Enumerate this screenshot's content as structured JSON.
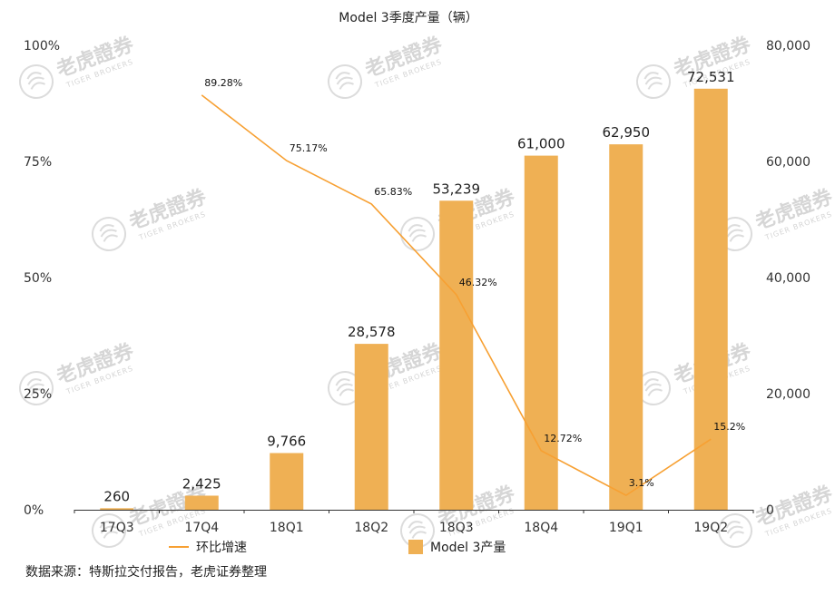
{
  "watermark": {
    "brand": "老虎證券",
    "sub": "TIGER BROKERS"
  },
  "source_note": "数据来源：特斯拉交付报告，老虎证券整理",
  "colors": {
    "bar": "#EFB054",
    "line": "#F7A032",
    "axis": "#333333"
  },
  "chart_data": {
    "type": "bar",
    "title": "Model 3季度产量（辆）",
    "categories": [
      "17Q3",
      "17Q4",
      "18Q1",
      "18Q2",
      "18Q3",
      "18Q4",
      "19Q1",
      "19Q2"
    ],
    "series": [
      {
        "name": "Model 3产量",
        "type": "bar",
        "axis": "right",
        "values": [
          260,
          2425,
          9766,
          28578,
          53239,
          61000,
          62950,
          72531
        ],
        "labels": [
          "260",
          "2,425",
          "9,766",
          "28,578",
          "53,239",
          "61,000",
          "62,950",
          "72,531"
        ]
      },
      {
        "name": "环比增速",
        "type": "line",
        "axis": "left",
        "values": [
          null,
          89.28,
          75.17,
          65.83,
          46.32,
          12.72,
          3.1,
          15.2
        ],
        "labels": [
          null,
          "89.28%",
          "75.17%",
          "65.83%",
          "46.32%",
          "12.72%",
          "3.1%",
          "15.2%"
        ]
      }
    ],
    "left_axis": {
      "ylim": [
        0,
        100
      ],
      "ticks": [
        0,
        25,
        50,
        75,
        100
      ],
      "tick_labels": [
        "0%",
        "25%",
        "50%",
        "75%",
        "100%"
      ]
    },
    "right_axis": {
      "ylim": [
        0,
        80000
      ],
      "ticks": [
        0,
        20000,
        40000,
        60000,
        80000
      ],
      "tick_labels": [
        "0",
        "20,000",
        "40,000",
        "60,000",
        "80,000"
      ]
    },
    "grid": false,
    "legend_position": "bottom"
  }
}
